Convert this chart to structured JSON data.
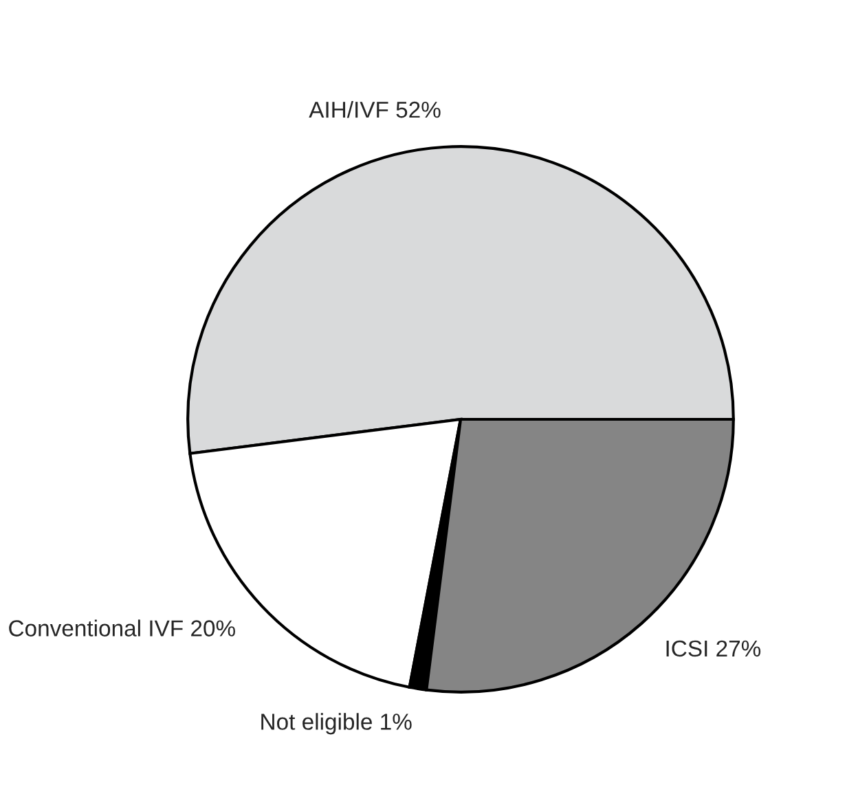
{
  "chart_data": {
    "type": "pie",
    "categories": [
      "AIH/IVF",
      "Conventional IVF",
      "Not eligible",
      "ICSI"
    ],
    "values": [
      52,
      20,
      1,
      27
    ],
    "value_labels": [
      "52%",
      "20%",
      "1%",
      "27%"
    ],
    "colors": [
      "#d9dadb",
      "#ffffff",
      "#000000",
      "#858585"
    ]
  }
}
